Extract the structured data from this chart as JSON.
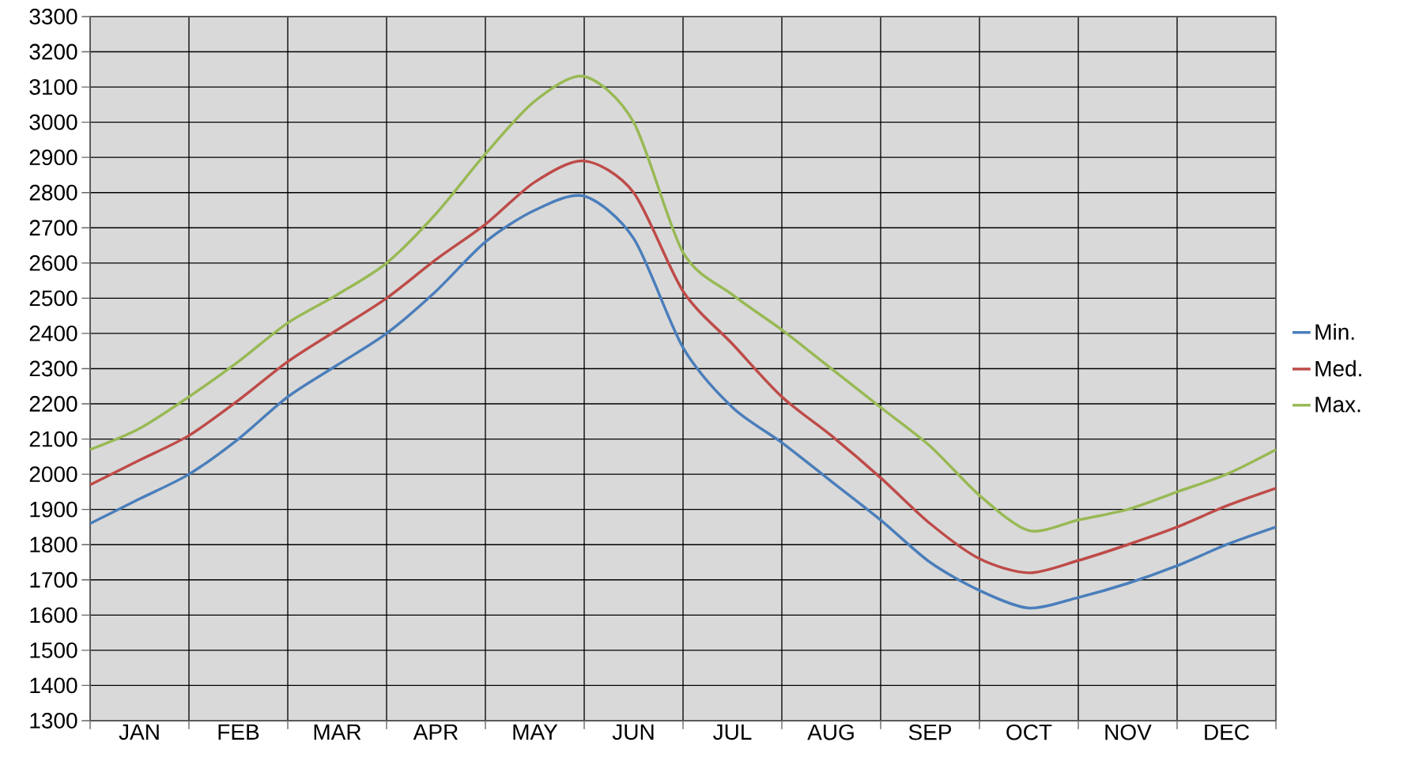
{
  "chart_data": {
    "type": "line",
    "categories": [
      null,
      "JAN",
      null,
      "FEB",
      null,
      "MAR",
      null,
      "APR",
      null,
      "MAY",
      null,
      "JUN",
      null,
      "JUL",
      null,
      "AUG",
      null,
      "SEP",
      null,
      "OCT",
      null,
      "NOV",
      null,
      "DEC",
      null
    ],
    "ylim": [
      1300,
      3300
    ],
    "yticks": [
      1300,
      1400,
      1500,
      1600,
      1700,
      1800,
      1900,
      2000,
      2100,
      2200,
      2300,
      2400,
      2500,
      2600,
      2700,
      2800,
      2900,
      3000,
      3100,
      3200,
      3300
    ],
    "grid": true,
    "legend": "right",
    "series": [
      {
        "name": "Min.",
        "color": "#4a7ebb",
        "values": [
          1860,
          1930,
          2000,
          2100,
          2220,
          2310,
          2400,
          2520,
          2660,
          2750,
          2790,
          2670,
          2360,
          2190,
          2090,
          1980,
          1870,
          1750,
          1670,
          1620,
          1650,
          1690,
          1740,
          1800,
          1850
        ]
      },
      {
        "name": "Med.",
        "color": "#be4b48",
        "values": [
          1970,
          2040,
          2110,
          2210,
          2320,
          2410,
          2500,
          2610,
          2710,
          2830,
          2890,
          2800,
          2520,
          2370,
          2220,
          2110,
          1990,
          1860,
          1760,
          1720,
          1755,
          1800,
          1850,
          1910,
          1960
        ]
      },
      {
        "name": "Max.",
        "color": "#98b954",
        "values": [
          2070,
          2130,
          2220,
          2320,
          2430,
          2510,
          2600,
          2740,
          2910,
          3060,
          3130,
          3000,
          2630,
          2510,
          2410,
          2300,
          2190,
          2080,
          1940,
          1840,
          1870,
          1900,
          1950,
          2000,
          2070
        ]
      }
    ]
  }
}
